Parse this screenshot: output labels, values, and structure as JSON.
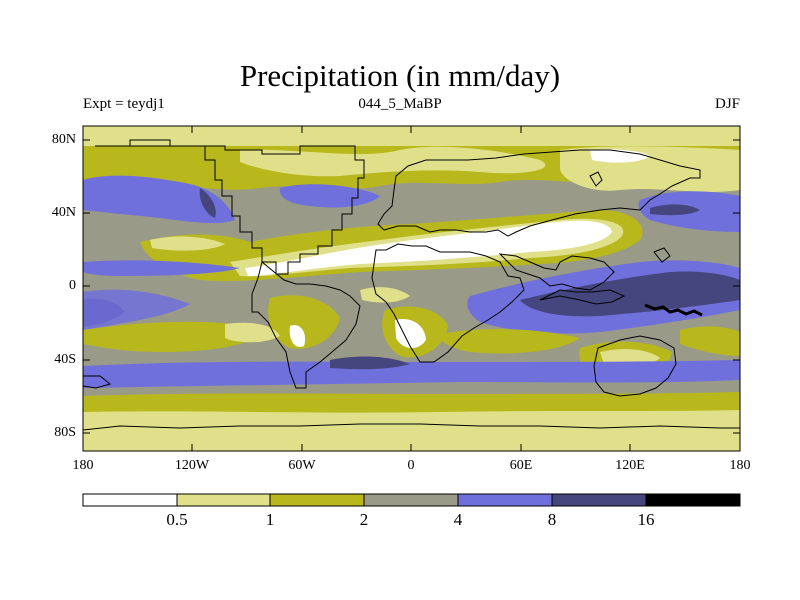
{
  "title": "Precipitation (in mm/day)",
  "subtitle_left": "Expt = teydj1",
  "subtitle_center": "044_5_MaBP",
  "subtitle_right": "DJF",
  "lat_ticks": [
    "80N",
    "40N",
    "0",
    "40S",
    "80S"
  ],
  "lon_ticks": [
    "180",
    "120W",
    "60W",
    "0",
    "60E",
    "120E",
    "180"
  ],
  "colorbar": {
    "levels": [
      "0.5",
      "1",
      "2",
      "4",
      "8",
      "16"
    ],
    "colors": [
      "#ffffff",
      "#e0e08a",
      "#b8b81c",
      "#9a9a88",
      "#7070dd",
      "#46467e",
      "#000000"
    ]
  }
}
